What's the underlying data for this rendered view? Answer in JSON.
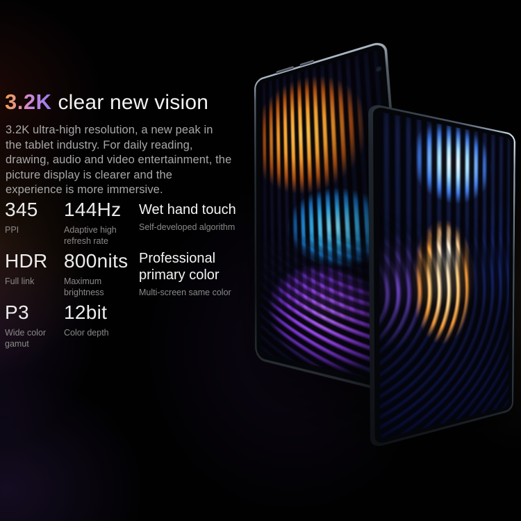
{
  "hero": {
    "title_highlight": "3.2K",
    "title_rest": "clear new vision",
    "title_gradient": [
      "#f2a24e",
      "#cc86d8",
      "#937df2"
    ],
    "description": "3.2K ultra-high resolution, a new peak in the tablet industry. For daily reading, drawing, audio and video entertainment, the picture display is clearer and the experience is more immersive."
  },
  "specs": [
    {
      "value": "345",
      "label": "PPI"
    },
    {
      "value": "144Hz",
      "label": "Adaptive high refresh rate"
    },
    {
      "value": "Wet hand touch",
      "label": "Self-developed algorithm"
    },
    {
      "value": "HDR",
      "label": "Full link"
    },
    {
      "value": "800nits",
      "label": "Maximum brightness"
    },
    {
      "value": "Professional primary color",
      "label": "Multi-screen same color"
    },
    {
      "value": "P3",
      "label": "Wide color gamut"
    },
    {
      "value": "12bit",
      "label": "Color depth"
    }
  ],
  "product": {
    "description": "two tablets shown at an angle with abstract wavy stripe wallpapers",
    "frame_color": "#5a646e",
    "back_screen_colors": [
      "#ffc84f",
      "#30a8e2",
      "#9040e8",
      "#2d55dc"
    ],
    "front_screen_colors": [
      "#f2fbff",
      "#ffd489",
      "#f59a38",
      "#8a54eb",
      "#1c37aa"
    ]
  }
}
